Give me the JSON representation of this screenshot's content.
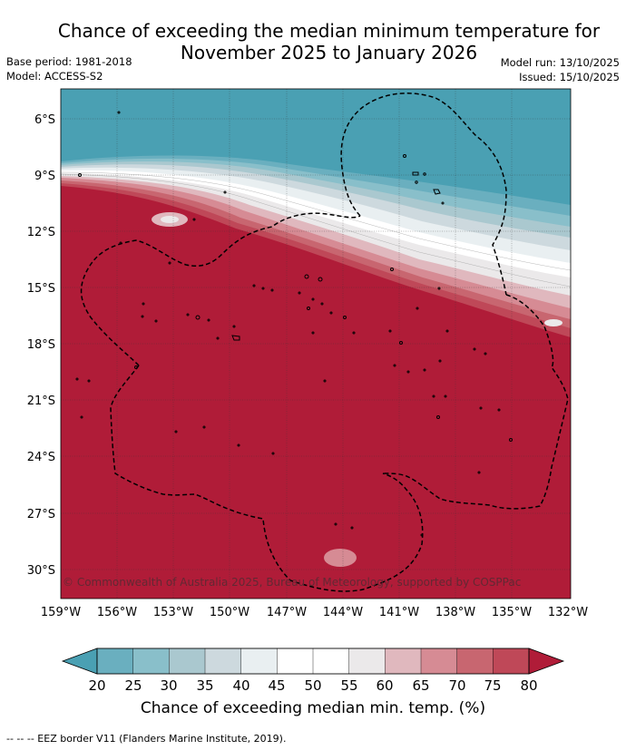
{
  "header": {
    "title_line1": "Chance of exceeding the median minimum temperature for",
    "title_line2": "November 2025 to January 2026",
    "base_period": "Base period: 1981-2018",
    "model": "Model: ACCESS-S2",
    "model_run": "Model run: 13/10/2025",
    "issued": "Issued: 15/10/2025"
  },
  "map": {
    "latitude_labels": [
      "6°S",
      "9°S",
      "12°S",
      "15°S",
      "18°S",
      "21°S",
      "24°S",
      "27°S",
      "30°S"
    ],
    "longitude_labels": [
      "159°W",
      "156°W",
      "153°W",
      "150°W",
      "147°W",
      "144°W",
      "141°W",
      "138°W",
      "135°W",
      "132°W"
    ],
    "copyright": "© Commonwealth of Australia 2025, Bureau of Meteorology, supported by COSPPac",
    "colors": {
      "below_20": "#4aa0b3",
      "above_80": "#b01c38"
    }
  },
  "colorbar": {
    "ticks": [
      "20",
      "25",
      "30",
      "35",
      "40",
      "45",
      "50",
      "55",
      "60",
      "65",
      "70",
      "75",
      "80"
    ],
    "colors": [
      "#4aa0b3",
      "#6aafbf",
      "#89bfca",
      "#aac8cf",
      "#cdd9de",
      "#e9eff1",
      "#ffffff",
      "#ffffff",
      "#ebe9ea",
      "#e0b8be",
      "#d68b94",
      "#c86670",
      "#bf4858",
      "#b01c38"
    ],
    "label": "Chance of exceeding median min. temp. (%)"
  },
  "footer": {
    "legend_text": "--  --  -- EEZ border V11 (Flanders Marine Institute, 2019)."
  }
}
